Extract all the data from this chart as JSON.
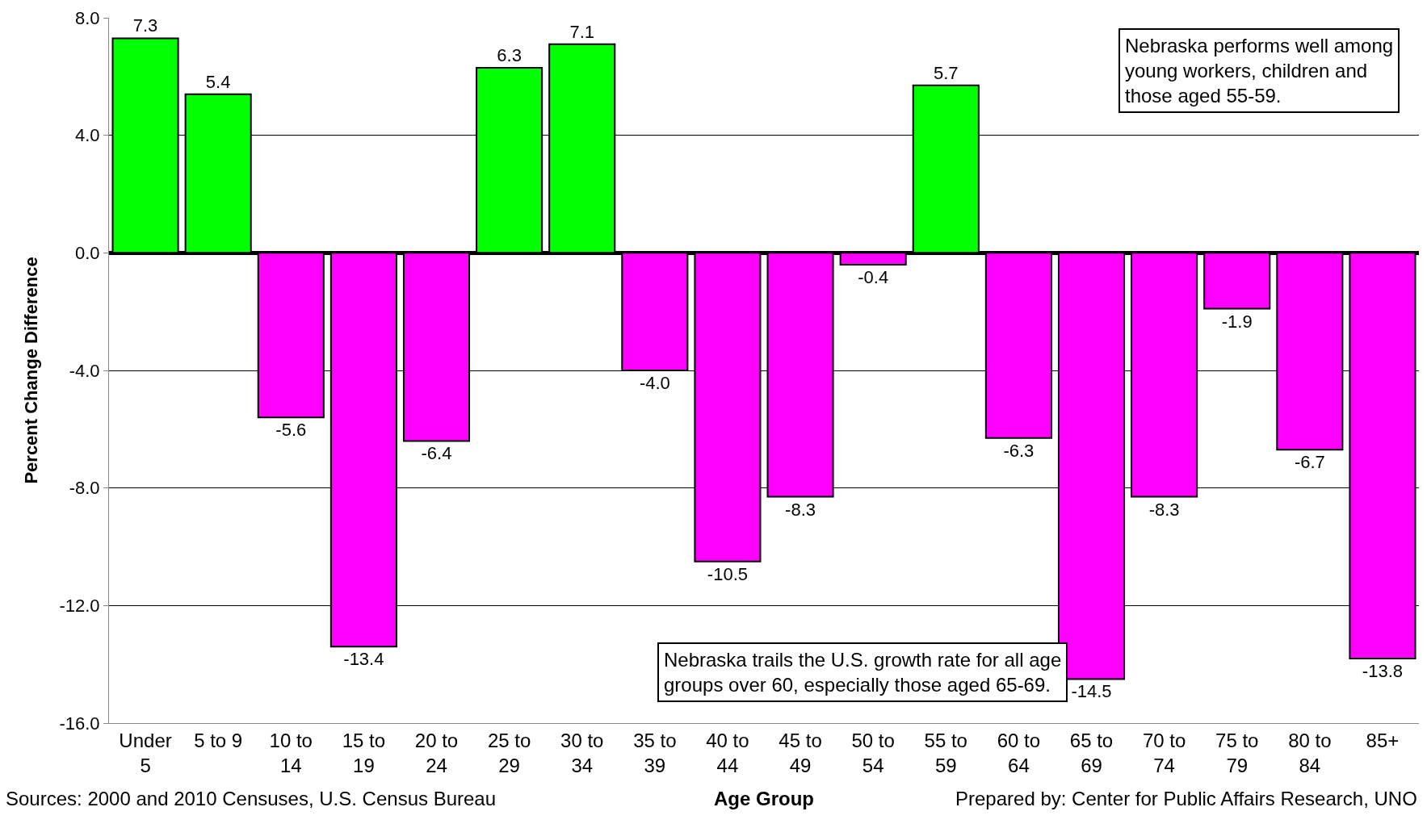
{
  "chart_data": {
    "type": "bar",
    "xlabel": "Age Group",
    "ylabel": "Percent Change Difference",
    "categories": [
      "Under 5",
      "5 to 9",
      "10 to 14",
      "15 to 19",
      "20 to 24",
      "25 to 29",
      "30 to 34",
      "35 to 39",
      "40 to 44",
      "45 to 49",
      "50 to 54",
      "55 to 59",
      "60 to 64",
      "65 to 69",
      "70 to 74",
      "75 to 79",
      "80 to 84",
      "85+"
    ],
    "values": [
      7.3,
      5.4,
      -5.6,
      -13.4,
      -6.4,
      6.3,
      7.1,
      -4.0,
      -10.5,
      -8.3,
      -0.4,
      5.7,
      -6.3,
      -14.5,
      -8.3,
      -1.9,
      -6.7,
      -13.8
    ],
    "colors": [
      "#00ff00",
      "#00ff00",
      "#ff00ff",
      "#ff00ff",
      "#ff00ff",
      "#00ff00",
      "#00ff00",
      "#ff00ff",
      "#ff00ff",
      "#ff00ff",
      "#ff00ff",
      "#00ff00",
      "#ff00ff",
      "#ff00ff",
      "#ff00ff",
      "#ff00ff",
      "#ff00ff",
      "#ff00ff"
    ],
    "value_labels": [
      "7.3",
      "5.4",
      "-5.6",
      "-13.4",
      "-6.4",
      "6.3",
      "7.1",
      "-4.0",
      "-10.5",
      "-8.3",
      "-0.4",
      "5.7",
      "-6.3",
      "-14.5",
      "-8.3",
      "-1.9",
      "-6.7",
      "-13.8"
    ],
    "grid": "y",
    "ylim": [
      -16,
      8
    ],
    "yticks": [
      {
        "value": -16,
        "label": "-16.0"
      },
      {
        "value": -12,
        "label": "-12.0"
      },
      {
        "value": -8,
        "label": "-8.0"
      },
      {
        "value": -4,
        "label": "-4.0"
      },
      {
        "value": 0,
        "label": "0.0"
      },
      {
        "value": 4,
        "label": "4.0"
      },
      {
        "value": 8,
        "label": "8.0"
      }
    ],
    "annotations": [
      "Nebraska performs well among young workers, children and those aged 55-59.",
      "Nebraska trails the U.S. growth rate for all age groups over 60, especially those aged 65-69.",
      "Sources: 2000 and 2010 Censuses, U.S. Census Bureau",
      "Prepared by: Center for Public Affairs Research, UNO"
    ]
  }
}
